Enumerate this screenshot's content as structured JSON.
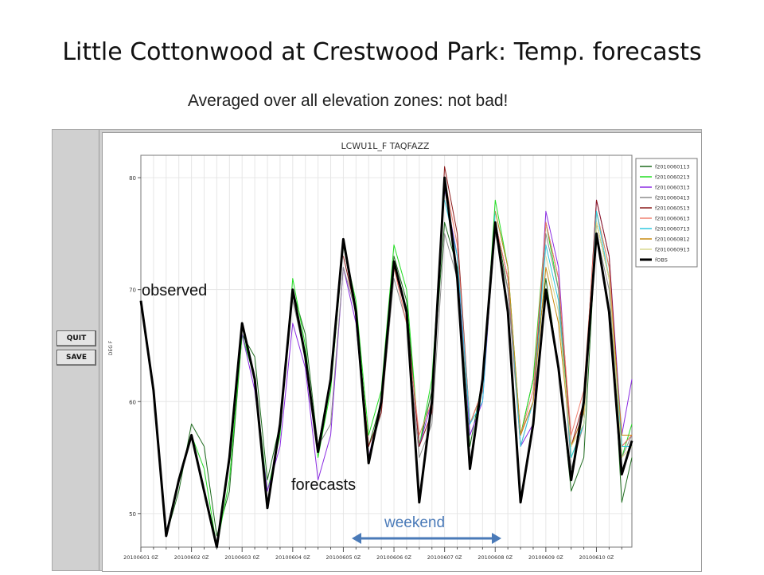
{
  "slide": {
    "title": "Little Cottonwood at Crestwood Park:  Temp. forecasts",
    "subtitle": "Averaged over all elevation zones:  not bad!"
  },
  "controls": {
    "quit_label": "QUIT",
    "save_label": "SAVE"
  },
  "annotations": {
    "observed": "observed",
    "forecasts": "forecasts",
    "weekend": "weekend"
  },
  "colors": {
    "weekend_arrow": "#4a7ab8",
    "window_bg": "#d0d0d0"
  },
  "chart_data": {
    "type": "line",
    "title": "LCWU1L_F TAQFAZZ",
    "ylabel": "DEG F",
    "xlabel": "",
    "ylim": [
      47,
      82
    ],
    "yticks": [
      50,
      60,
      70,
      80
    ],
    "x_tick_labels": [
      "20100601 0Z",
      "20100602 0Z",
      "20100603 0Z",
      "20100604 0Z",
      "20100605 0Z",
      "20100606 0Z",
      "20100607 0Z",
      "20100608 0Z",
      "20100609 0Z",
      "20100610 0Z"
    ],
    "x_range_days": [
      0,
      9.7
    ],
    "grid": true,
    "legend_position": "right",
    "series": [
      {
        "name": "f2010060113",
        "color": "#1e6b1e",
        "width": 1,
        "x": [
          0,
          0.25,
          0.5,
          0.75,
          1,
          1.25,
          1.5,
          1.75,
          2,
          2.25,
          2.5,
          2.75,
          3,
          3.25,
          3.5,
          3.75,
          4,
          4.25,
          4.5,
          4.75,
          5,
          5.25,
          5.5,
          5.75,
          6,
          6.25,
          6.5,
          6.75,
          7,
          7.25,
          7.5,
          7.75,
          8,
          8.25,
          8.5,
          8.75,
          9,
          9.25,
          9.5,
          9.7
        ],
        "y": [
          69,
          61,
          48,
          52,
          58,
          56,
          48,
          52,
          66,
          64,
          53,
          58,
          70,
          66,
          56,
          62,
          74,
          68,
          56,
          60,
          73,
          69,
          56,
          61,
          76,
          72,
          56,
          62,
          76,
          70,
          57,
          62,
          71,
          63,
          52,
          55,
          76,
          71,
          51,
          55
        ]
      },
      {
        "name": "f2010060213",
        "color": "#22dd22",
        "width": 1,
        "x": [
          1,
          1.25,
          1.5,
          1.75,
          2,
          2.25,
          2.5,
          2.75,
          3,
          3.25,
          3.5,
          3.75,
          4,
          4.25,
          4.5,
          4.75,
          5,
          5.25,
          5.5,
          5.75,
          6,
          6.25,
          6.5,
          6.75,
          7,
          7.25,
          7.5,
          7.75,
          8,
          8.25,
          8.5,
          8.75,
          9,
          9.25,
          9.5,
          9.7
        ],
        "y": [
          57,
          54,
          47,
          53,
          66,
          62,
          52,
          57,
          71,
          65,
          55,
          61,
          74,
          69,
          57,
          61,
          74,
          70,
          56,
          62,
          79,
          73,
          58,
          61,
          78,
          72,
          57,
          62,
          76,
          70,
          55,
          58,
          77,
          72,
          55,
          58
        ]
      },
      {
        "name": "f2010060313",
        "color": "#8a2be2",
        "width": 1,
        "x": [
          2,
          2.25,
          2.5,
          2.75,
          3,
          3.25,
          3.5,
          3.75,
          4,
          4.25,
          4.5,
          4.75,
          5,
          5.25,
          5.5,
          5.75,
          6,
          6.25,
          6.5,
          6.75,
          7,
          7.25,
          7.5,
          7.75,
          8,
          8.25,
          8.5,
          8.75,
          9,
          9.25,
          9.5,
          9.7
        ],
        "y": [
          66,
          61,
          52,
          56,
          67,
          63,
          53,
          57,
          72,
          67,
          55,
          60,
          72,
          68,
          56,
          60,
          79,
          73,
          57,
          60,
          76,
          71,
          56,
          58,
          77,
          72,
          56,
          59,
          78,
          73,
          57,
          62
        ]
      },
      {
        "name": "f2010060413",
        "color": "#8c8c8c",
        "width": 1,
        "x": [
          3,
          3.25,
          3.5,
          3.75,
          4,
          4.25,
          4.5,
          4.75,
          5,
          5.25,
          5.5,
          5.75,
          6,
          6.25,
          6.5,
          6.75,
          7,
          7.25,
          7.5,
          7.75,
          8,
          8.25,
          8.5,
          8.75,
          9,
          9.25,
          9.5,
          9.7
        ],
        "y": [
          69,
          64,
          56,
          58,
          72,
          68,
          55,
          59,
          71,
          67,
          55,
          58,
          75,
          71,
          58,
          61,
          75,
          70,
          56,
          60,
          75,
          70,
          54,
          58,
          75,
          70,
          55,
          57
        ]
      },
      {
        "name": "f2010060513",
        "color": "#8b1a1a",
        "width": 1,
        "x": [
          4,
          4.25,
          4.5,
          4.75,
          5,
          5.25,
          5.5,
          5.75,
          6,
          6.25,
          6.5,
          6.75,
          7,
          7.25,
          7.5,
          7.75,
          8,
          8.25,
          8.5,
          8.75,
          9,
          9.25,
          9.5,
          9.7
        ],
        "y": [
          73,
          68,
          56,
          59,
          72,
          68,
          56,
          59,
          81,
          75,
          58,
          61,
          76,
          71,
          57,
          60,
          76,
          71,
          56,
          60,
          78,
          73,
          56,
          57
        ]
      },
      {
        "name": "f2010060613",
        "color": "#f08070",
        "width": 1,
        "x": [
          5,
          5.25,
          5.5,
          5.75,
          6,
          6.25,
          6.5,
          6.75,
          7,
          7.25,
          7.5,
          7.75,
          8,
          8.25,
          8.5,
          8.75,
          9,
          9.25,
          9.5,
          9.7
        ],
        "y": [
          72,
          67,
          57,
          60,
          80,
          74,
          58,
          61,
          76,
          71,
          57,
          61,
          76,
          71,
          57,
          61,
          77,
          72,
          56,
          57
        ]
      },
      {
        "name": "f2010060713",
        "color": "#30c8e0",
        "width": 1,
        "x": [
          6,
          6.25,
          6.5,
          6.75,
          7,
          7.25,
          7.5,
          7.75,
          8,
          8.25,
          8.5,
          8.75,
          9,
          9.25,
          9.5,
          9.7
        ],
        "y": [
          78,
          73,
          58,
          60,
          77,
          72,
          56,
          60,
          74,
          69,
          55,
          58,
          77,
          71,
          56,
          56
        ]
      },
      {
        "name": "f2010060812",
        "color": "#c88a10",
        "width": 1,
        "x": [
          7,
          7.25,
          7.5,
          7.75,
          8,
          8.25,
          8.5,
          8.75,
          9,
          9.25,
          9.5,
          9.7
        ],
        "y": [
          77,
          72,
          57,
          60,
          72,
          67,
          56,
          59,
          76,
          71,
          57,
          57
        ]
      },
      {
        "name": "f2010060913",
        "color": "#d8d890",
        "width": 1,
        "x": [
          8,
          8.25,
          8.5,
          8.75,
          9,
          9.25,
          9.5,
          9.7
        ],
        "y": [
          73,
          68,
          56,
          58,
          76,
          71,
          55,
          56
        ]
      },
      {
        "name": "fOBS",
        "color": "#000000",
        "width": 3,
        "x": [
          0,
          0.25,
          0.5,
          0.75,
          1,
          1.25,
          1.5,
          1.75,
          2,
          2.25,
          2.5,
          2.75,
          3,
          3.25,
          3.5,
          3.75,
          4,
          4.25,
          4.5,
          4.75,
          5,
          5.25,
          5.5,
          5.75,
          6,
          6.25,
          6.5,
          6.75,
          7,
          7.25,
          7.5,
          7.75,
          8,
          8.25,
          8.5,
          8.75,
          9,
          9.25,
          9.5,
          9.7
        ],
        "y": [
          69,
          61,
          48,
          53,
          57,
          52,
          47,
          55,
          67,
          62,
          50.5,
          58,
          70,
          64,
          55.5,
          62,
          74.5,
          68,
          54.5,
          60,
          72.5,
          68,
          51,
          60,
          80,
          71,
          54,
          62,
          76,
          68,
          51,
          58,
          70,
          63,
          53,
          60,
          75,
          68,
          53.5,
          56.5
        ]
      }
    ]
  }
}
